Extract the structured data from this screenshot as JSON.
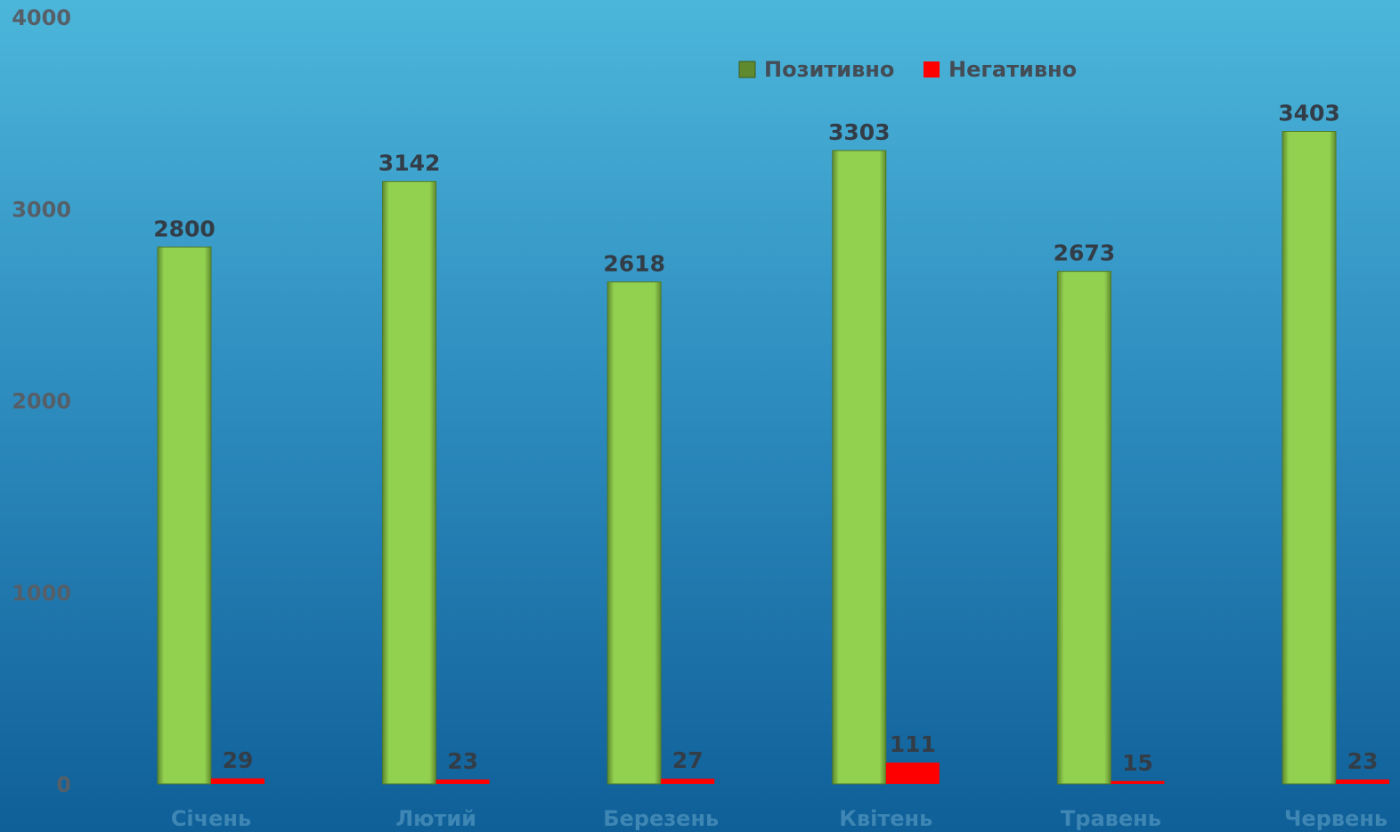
{
  "chart_data": {
    "type": "bar",
    "categories": [
      "Січень",
      "Лютий",
      "Березень",
      "Квітень",
      "Травень",
      "Червень"
    ],
    "series": [
      {
        "name": "Позитивно",
        "values": [
          2800,
          3142,
          2618,
          3303,
          2673,
          3403
        ],
        "color": "#92d050"
      },
      {
        "name": "Негативно",
        "values": [
          29,
          23,
          27,
          111,
          15,
          23
        ],
        "color": "#ff0000"
      }
    ],
    "ylim": [
      0,
      4000
    ],
    "yticks": [
      0,
      1000,
      2000,
      3000,
      4000
    ],
    "grid": false,
    "legend_position": "top-right"
  }
}
